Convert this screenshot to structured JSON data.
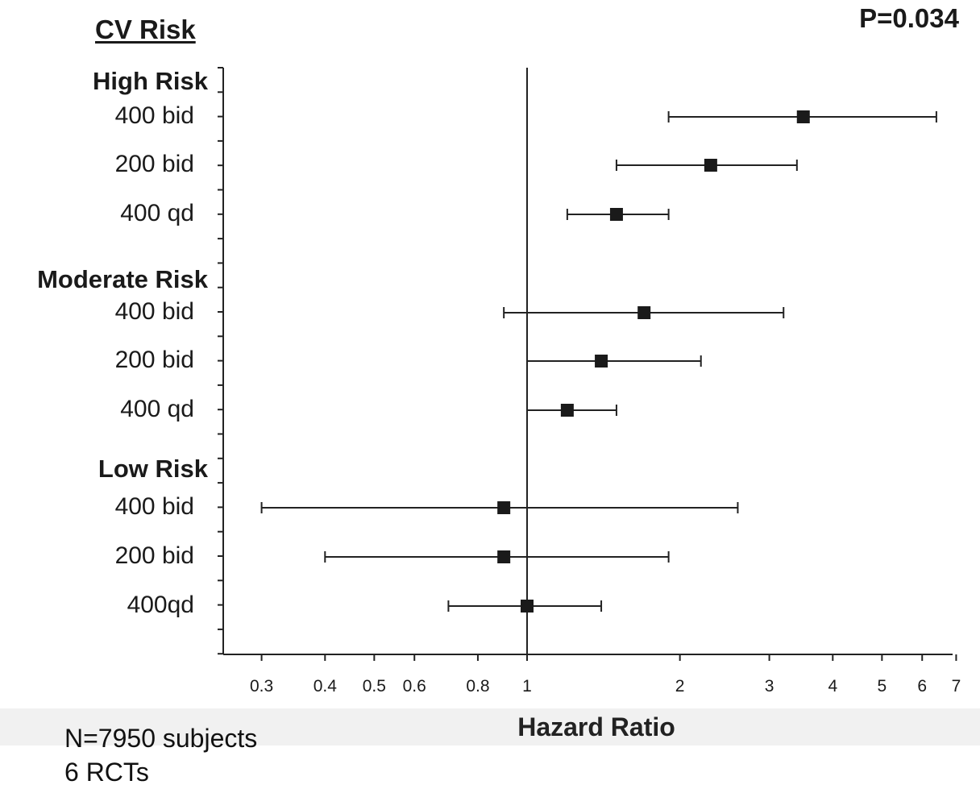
{
  "header": {
    "title": "CV Risk",
    "p_value": "P=0.034"
  },
  "notes": {
    "subjects": "N=7950 subjects",
    "trials": "6 RCTs"
  },
  "chart_data": {
    "type": "forest",
    "xlabel": "Hazard Ratio",
    "x_scale": "log",
    "x_ticks": [
      0.3,
      0.4,
      0.5,
      0.6,
      0.8,
      1,
      2,
      3,
      4,
      5,
      6,
      7
    ],
    "x_tick_labels": [
      "0.3",
      "0.4",
      "0.5",
      "0.6",
      "0.8",
      "1",
      "2",
      "3",
      "4",
      "5",
      "6",
      "7"
    ],
    "xlim": [
      0.24,
      7
    ],
    "reference_line": 1,
    "groups": [
      {
        "name": "High Risk",
        "rows": [
          {
            "label": "400 bid",
            "hr": 3.5,
            "lower": 1.9,
            "upper": 6.4
          },
          {
            "label": "200 bid",
            "hr": 2.3,
            "lower": 1.5,
            "upper": 3.4
          },
          {
            "label": "400 qd",
            "hr": 1.5,
            "lower": 1.2,
            "upper": 1.9
          }
        ]
      },
      {
        "name": "Moderate Risk",
        "rows": [
          {
            "label": "400 bid",
            "hr": 1.7,
            "lower": 0.9,
            "upper": 3.2
          },
          {
            "label": "200 bid",
            "hr": 1.4,
            "lower": 1.0,
            "upper": 2.2
          },
          {
            "label": "400 qd",
            "hr": 1.2,
            "lower": 1.0,
            "upper": 1.5
          }
        ]
      },
      {
        "name": "Low Risk",
        "rows": [
          {
            "label": "400 bid",
            "hr": 0.9,
            "lower": 0.3,
            "upper": 2.6
          },
          {
            "label": "200 bid",
            "hr": 0.9,
            "lower": 0.4,
            "upper": 1.9
          },
          {
            "label": "400qd",
            "hr": 1.0,
            "lower": 0.7,
            "upper": 1.4
          }
        ]
      }
    ]
  }
}
